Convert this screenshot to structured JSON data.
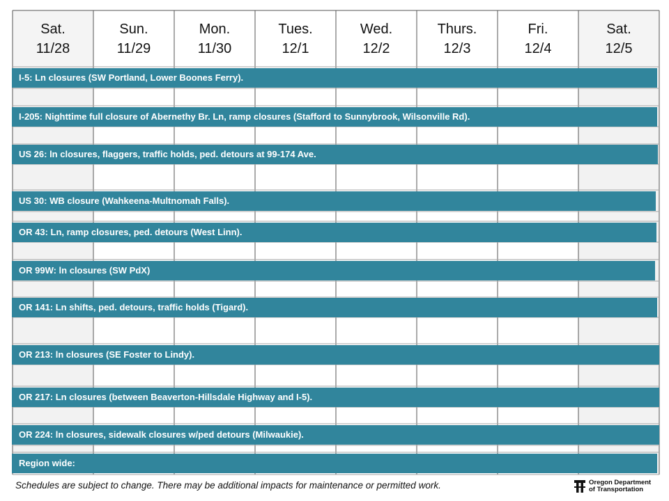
{
  "days": [
    {
      "day": "Sat.",
      "date": "11/28"
    },
    {
      "day": "Sun.",
      "date": "11/29"
    },
    {
      "day": "Mon.",
      "date": "11/30"
    },
    {
      "day": "Tues.",
      "date": "12/1"
    },
    {
      "day": "Wed.",
      "date": "12/2"
    },
    {
      "day": "Thurs.",
      "date": "12/3"
    },
    {
      "day": "Fri.",
      "date": "12/4"
    },
    {
      "day": "Sat.",
      "date": "12/5"
    }
  ],
  "projects": [
    {
      "label": "I-5: Ln closures (SW Portland, Lower Boones Ferry)."
    },
    {
      "label": "I-205: Nighttime full closure of Abernethy Br. Ln, ramp closures (Stafford to Sunnybrook, Wilsonville Rd)."
    },
    {
      "label": "US 26: ln closures, flaggers, traffic holds, ped. detours at 99-174 Ave."
    },
    {
      "label": "US 30: WB closure (Wahkeena-Multnomah Falls)."
    },
    {
      "label": "OR 43: Ln, ramp closures, ped. detours (West Linn)."
    },
    {
      "label": "OR 99W: ln closures (SW PdX)"
    },
    {
      "label": "OR 141: Ln shifts, ped. detours, traffic holds (Tigard)."
    },
    {
      "label": "OR 213: ln closures (SE Foster to Lindy)."
    },
    {
      "label": "OR 217: Ln closures (between Beaverton-Hillsdale Highway and I-5)."
    },
    {
      "label": "OR 224: ln closures, sidewalk closures w/ped detours (Milwaukie)."
    },
    {
      "label": "Region wide:"
    }
  ],
  "footer": "Schedules are subject to change. There may be additional impacts for maintenance or permitted work.",
  "logo": {
    "line1": "Oregon Department",
    "line2": "of Transportation"
  },
  "colors": {
    "bar": "#31859c",
    "weekend_shade": "#f2f2f2",
    "grid_line": "#a6a6a6"
  }
}
